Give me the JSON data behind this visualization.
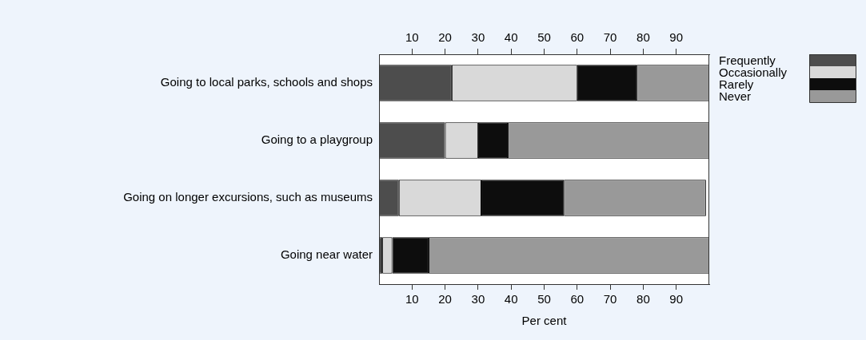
{
  "chart_data": {
    "type": "bar",
    "orientation": "horizontal",
    "stacked": true,
    "xlabel": "Per cent",
    "categories": [
      "Going to local parks, schools and shops",
      "Going to a playgroup",
      "Going on longer excursions, such as museums",
      "Going near water"
    ],
    "series": [
      {
        "name": "Frequently",
        "color": "#4d4d4d",
        "values": [
          22,
          20,
          6,
          1
        ]
      },
      {
        "name": "Occasionally",
        "color": "#d9d9d9",
        "values": [
          38,
          10,
          25,
          3
        ]
      },
      {
        "name": "Rarely",
        "color": "#0d0d0d",
        "values": [
          18,
          9,
          25,
          11
        ]
      },
      {
        "name": "Never",
        "color": "#999999",
        "values": [
          22,
          61,
          43,
          85
        ]
      }
    ],
    "xlim": [
      0,
      100
    ],
    "xticks": [
      10,
      20,
      30,
      40,
      50,
      60,
      70,
      80,
      90
    ],
    "x2lim": [
      0,
      100
    ],
    "x2ticks": [
      10,
      20,
      30,
      40,
      50,
      60,
      70,
      80,
      90
    ],
    "grid": false,
    "legend": "right"
  }
}
